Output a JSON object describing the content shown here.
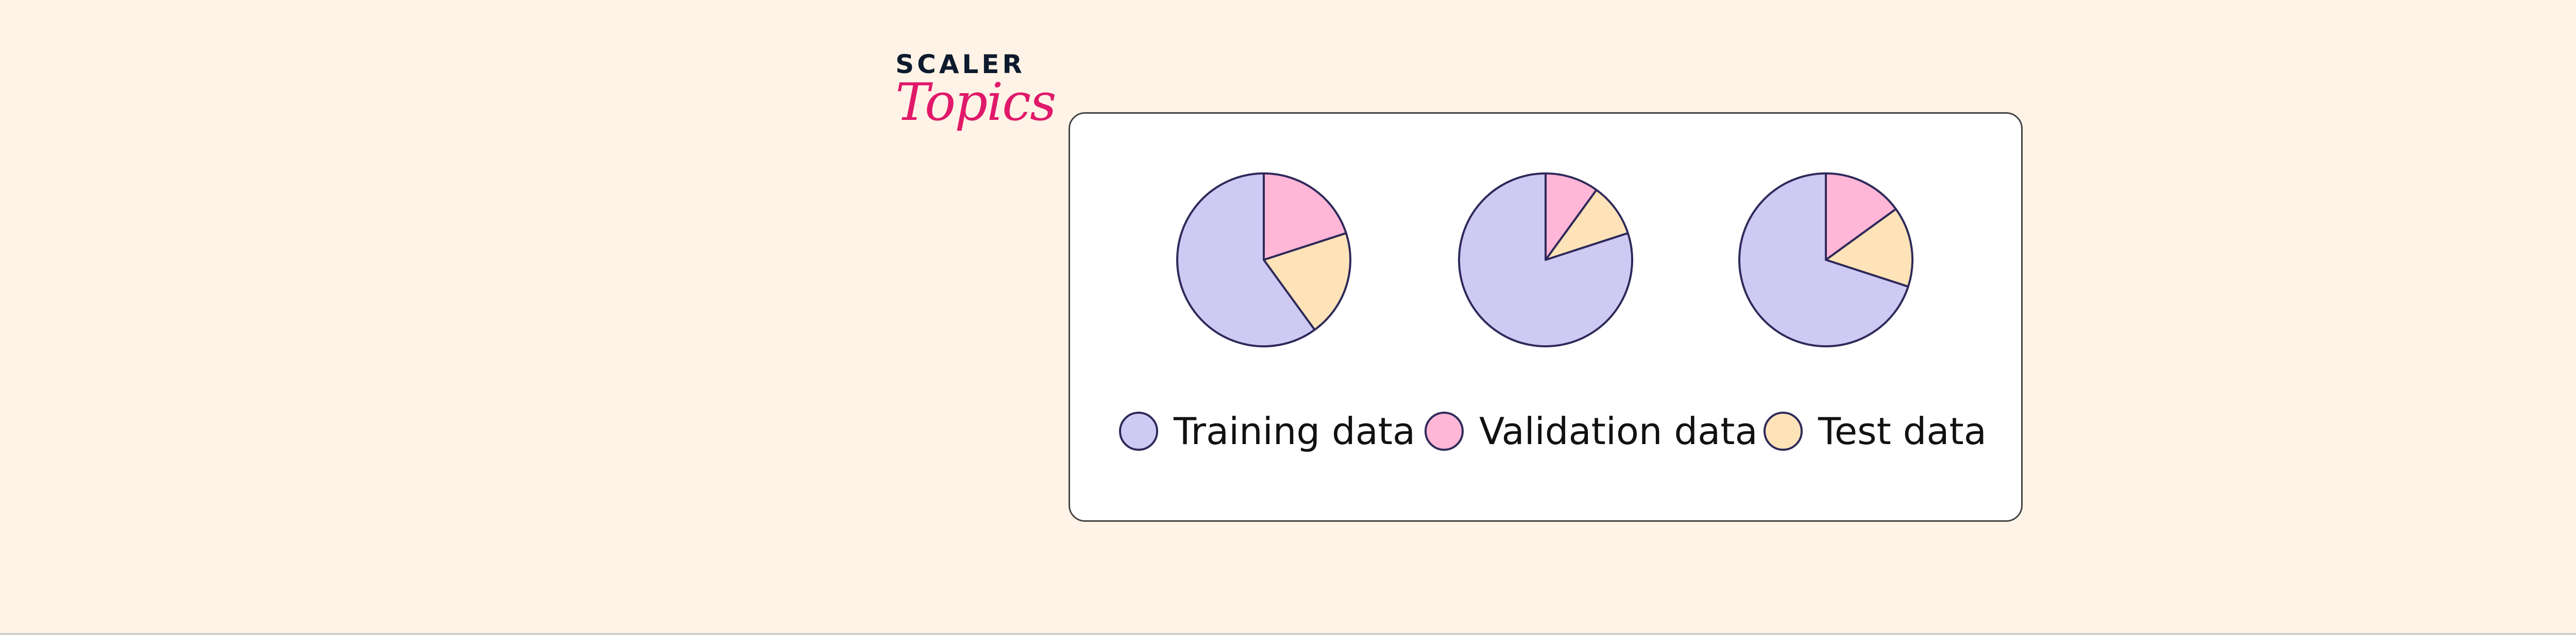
{
  "logo": {
    "line1": "SCALER",
    "line2": "Topics"
  },
  "chart_data": {
    "type": "pie",
    "title": "",
    "legend_position": "bottom",
    "categories": [
      "Training data",
      "Validation data",
      "Test data"
    ],
    "colors": [
      "#cfcaf4",
      "#ffb6d7",
      "#ffe3b8"
    ],
    "outline_color": "#2e2a5a",
    "pies": [
      {
        "values": [
          60,
          20,
          20
        ]
      },
      {
        "values": [
          80,
          10,
          10
        ]
      },
      {
        "values": [
          70,
          15,
          15
        ]
      }
    ]
  },
  "legend": [
    {
      "label": "Training data"
    },
    {
      "label": "Validation data"
    },
    {
      "label": "Test data"
    }
  ]
}
